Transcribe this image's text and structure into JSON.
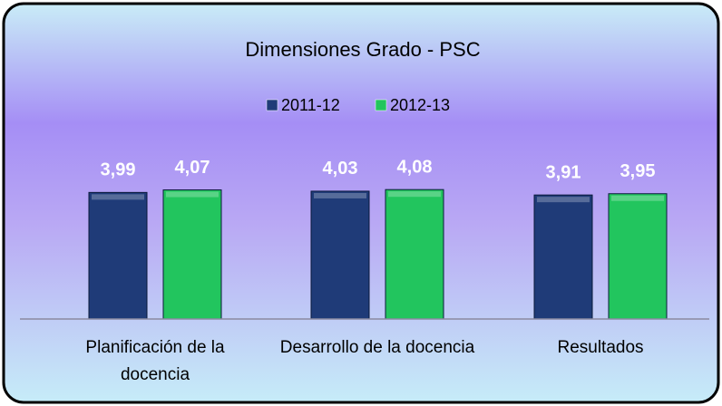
{
  "chart_data": {
    "type": "bar",
    "title": "Dimensiones Grado - PSC",
    "categories": [
      "Planificación de la docencia",
      "Desarrollo de la docencia",
      "Resultados"
    ],
    "series": [
      {
        "name": "2011-12",
        "color": "#1f3b78",
        "values": [
          3.99,
          4.03,
          3.91
        ],
        "value_labels": [
          "3,99",
          "4,03",
          "3,91"
        ]
      },
      {
        "name": "2012-13",
        "color": "#22c55e",
        "values": [
          4.07,
          4.08,
          3.95
        ],
        "value_labels": [
          "4,07",
          "4,08",
          "3,95"
        ]
      }
    ],
    "ylim": [
      0,
      5
    ],
    "legend": "top"
  }
}
